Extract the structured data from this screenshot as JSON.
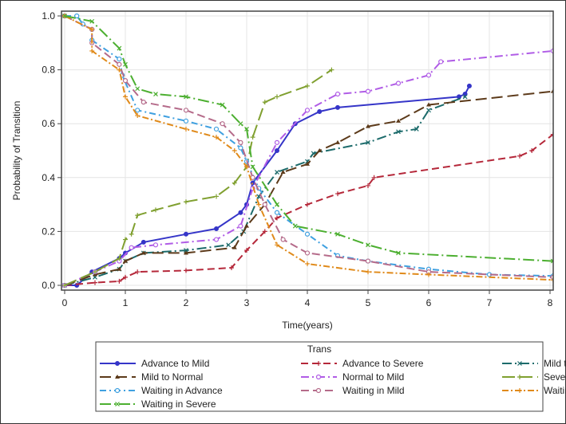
{
  "chart_data": {
    "type": "line",
    "title": "",
    "xlabel": "Time(years)",
    "ylabel": "Probability of Transition",
    "xlim": [
      0,
      8
    ],
    "ylim": [
      0,
      1
    ],
    "xticks": [
      "0",
      "1",
      "2",
      "3",
      "4",
      "5",
      "6",
      "7",
      "8"
    ],
    "yticks": [
      "0.0",
      "0.2",
      "0.4",
      "0.6",
      "0.8",
      "1.0"
    ],
    "grid": true,
    "legend": {
      "title": "Trans",
      "placement": "bottom"
    },
    "series": [
      {
        "name": "Advance to Mild",
        "color": "#3535c8",
        "dash": "",
        "marker": "circle",
        "points": [
          [
            0,
            0
          ],
          [
            0.2,
            0
          ],
          [
            0.45,
            0.05
          ],
          [
            0.9,
            0.1
          ],
          [
            1,
            0.12
          ],
          [
            1.3,
            0.16
          ],
          [
            2,
            0.19
          ],
          [
            2.5,
            0.21
          ],
          [
            2.9,
            0.27
          ],
          [
            3,
            0.3
          ],
          [
            3.1,
            0.38
          ],
          [
            3.5,
            0.5
          ],
          [
            3.8,
            0.6
          ],
          [
            4.2,
            0.645
          ],
          [
            4.5,
            0.66
          ],
          [
            6.5,
            0.7
          ],
          [
            6.6,
            0.71
          ],
          [
            6.67,
            0.74
          ]
        ]
      },
      {
        "name": "Advance to Severe",
        "color": "#b5283a",
        "dash": "9,5",
        "marker": "plus",
        "points": [
          [
            0,
            0
          ],
          [
            0.5,
            0.01
          ],
          [
            0.9,
            0.015
          ],
          [
            1,
            0.03
          ],
          [
            1.2,
            0.05
          ],
          [
            2,
            0.055
          ],
          [
            2.75,
            0.065
          ],
          [
            3,
            0.13
          ],
          [
            3.3,
            0.2
          ],
          [
            3.5,
            0.25
          ],
          [
            4,
            0.3
          ],
          [
            4.5,
            0.34
          ],
          [
            5,
            0.37
          ],
          [
            5.1,
            0.4
          ],
          [
            7.5,
            0.48
          ],
          [
            7.7,
            0.5
          ],
          [
            8.05,
            0.56
          ]
        ]
      },
      {
        "name": "Mild to Advance",
        "color": "#1c6b6b",
        "dash": "12,4,2,4",
        "marker": "x",
        "points": [
          [
            0,
            0
          ],
          [
            0.5,
            0.03
          ],
          [
            0.9,
            0.06
          ],
          [
            1,
            0.09
          ],
          [
            1.3,
            0.12
          ],
          [
            2,
            0.13
          ],
          [
            2.7,
            0.15
          ],
          [
            2.95,
            0.2
          ],
          [
            3.2,
            0.33
          ],
          [
            3.5,
            0.42
          ],
          [
            4,
            0.46
          ],
          [
            4.1,
            0.49
          ],
          [
            5,
            0.53
          ],
          [
            5.5,
            0.57
          ],
          [
            5.8,
            0.58
          ],
          [
            6,
            0.65
          ],
          [
            6.6,
            0.7
          ]
        ]
      },
      {
        "name": "Mild to Normal",
        "color": "#5c3a1a",
        "dash": "14,6",
        "marker": "triangle",
        "points": [
          [
            0,
            0
          ],
          [
            0.5,
            0.04
          ],
          [
            0.9,
            0.06
          ],
          [
            1,
            0.09
          ],
          [
            1.3,
            0.12
          ],
          [
            2,
            0.12
          ],
          [
            2.8,
            0.14
          ],
          [
            3,
            0.22
          ],
          [
            3.3,
            0.3
          ],
          [
            3.6,
            0.42
          ],
          [
            4,
            0.45
          ],
          [
            4.2,
            0.5
          ],
          [
            4.5,
            0.53
          ],
          [
            5,
            0.59
          ],
          [
            5.5,
            0.61
          ],
          [
            6,
            0.67
          ],
          [
            8.05,
            0.72
          ]
        ]
      },
      {
        "name": "Normal to Mild",
        "color": "#b05ce6",
        "dash": "10,4,2,4",
        "marker": "circle-open",
        "points": [
          [
            0,
            0
          ],
          [
            0.5,
            0.05
          ],
          [
            0.9,
            0.09
          ],
          [
            1.1,
            0.14
          ],
          [
            1.5,
            0.15
          ],
          [
            2.5,
            0.17
          ],
          [
            2.9,
            0.22
          ],
          [
            3.1,
            0.36
          ],
          [
            3.5,
            0.53
          ],
          [
            4,
            0.65
          ],
          [
            4.5,
            0.71
          ],
          [
            5,
            0.72
          ],
          [
            5.5,
            0.75
          ],
          [
            6,
            0.78
          ],
          [
            6.2,
            0.83
          ],
          [
            8.05,
            0.87
          ]
        ]
      },
      {
        "name": "Severe to Advance",
        "color": "#80a030",
        "dash": "16,6",
        "marker": "plus",
        "points": [
          [
            0,
            0
          ],
          [
            0.5,
            0.05
          ],
          [
            0.9,
            0.1
          ],
          [
            1,
            0.17
          ],
          [
            1.1,
            0.19
          ],
          [
            1.2,
            0.26
          ],
          [
            1.5,
            0.28
          ],
          [
            2,
            0.31
          ],
          [
            2.5,
            0.33
          ],
          [
            2.8,
            0.38
          ],
          [
            3,
            0.44
          ],
          [
            3.1,
            0.55
          ],
          [
            3.3,
            0.68
          ],
          [
            3.5,
            0.7
          ],
          [
            4,
            0.74
          ],
          [
            4.4,
            0.8
          ]
        ]
      },
      {
        "name": "Waiting in Advance",
        "color": "#3fa0e0",
        "dash": "8,4,2,4",
        "marker": "circle-open",
        "points": [
          [
            0,
            1
          ],
          [
            0.2,
            1
          ],
          [
            0.3,
            0.97
          ],
          [
            0.45,
            0.95
          ],
          [
            0.45,
            0.91
          ],
          [
            0.9,
            0.84
          ],
          [
            0.95,
            0.78
          ],
          [
            1.2,
            0.65
          ],
          [
            2,
            0.61
          ],
          [
            2.5,
            0.58
          ],
          [
            2.9,
            0.51
          ],
          [
            3,
            0.46
          ],
          [
            3.2,
            0.36
          ],
          [
            3.5,
            0.27
          ],
          [
            4,
            0.19
          ],
          [
            4.5,
            0.11
          ],
          [
            5,
            0.09
          ],
          [
            6,
            0.06
          ],
          [
            7,
            0.04
          ],
          [
            8.05,
            0.035
          ]
        ]
      },
      {
        "name": "Waiting in Mild",
        "color": "#b56b8a",
        "dash": "10,5",
        "marker": "circle-open",
        "points": [
          [
            0,
            1
          ],
          [
            0.45,
            0.95
          ],
          [
            0.45,
            0.9
          ],
          [
            0.9,
            0.82
          ],
          [
            1,
            0.76
          ],
          [
            1.3,
            0.68
          ],
          [
            2,
            0.65
          ],
          [
            2.6,
            0.6
          ],
          [
            2.9,
            0.53
          ],
          [
            3.1,
            0.4
          ],
          [
            3.3,
            0.3
          ],
          [
            3.6,
            0.17
          ],
          [
            4,
            0.12
          ],
          [
            5,
            0.09
          ],
          [
            6,
            0.05
          ],
          [
            8.05,
            0.03
          ]
        ]
      },
      {
        "name": "Waiting in Normal",
        "color": "#e08a1a",
        "dash": "8,3,2,3",
        "marker": "plus",
        "points": [
          [
            0,
            1
          ],
          [
            0.45,
            0.95
          ],
          [
            0.45,
            0.87
          ],
          [
            0.9,
            0.8
          ],
          [
            1,
            0.7
          ],
          [
            1.2,
            0.63
          ],
          [
            2,
            0.58
          ],
          [
            2.5,
            0.55
          ],
          [
            2.8,
            0.5
          ],
          [
            3,
            0.44
          ],
          [
            3.2,
            0.3
          ],
          [
            3.5,
            0.15
          ],
          [
            4,
            0.08
          ],
          [
            5,
            0.05
          ],
          [
            6,
            0.04
          ],
          [
            8.05,
            0.02
          ]
        ]
      },
      {
        "name": "Waiting in Severe",
        "color": "#4caf30",
        "dash": "14,4,2,4",
        "marker": "x",
        "points": [
          [
            0,
            1
          ],
          [
            0.45,
            0.98
          ],
          [
            0.9,
            0.88
          ],
          [
            1,
            0.82
          ],
          [
            1.2,
            0.73
          ],
          [
            1.5,
            0.71
          ],
          [
            2,
            0.7
          ],
          [
            2.6,
            0.67
          ],
          [
            2.9,
            0.6
          ],
          [
            3,
            0.58
          ],
          [
            3.1,
            0.44
          ],
          [
            3.5,
            0.3
          ],
          [
            3.8,
            0.22
          ],
          [
            4.5,
            0.19
          ],
          [
            5,
            0.15
          ],
          [
            5.5,
            0.12
          ],
          [
            8.05,
            0.09
          ]
        ]
      }
    ]
  }
}
